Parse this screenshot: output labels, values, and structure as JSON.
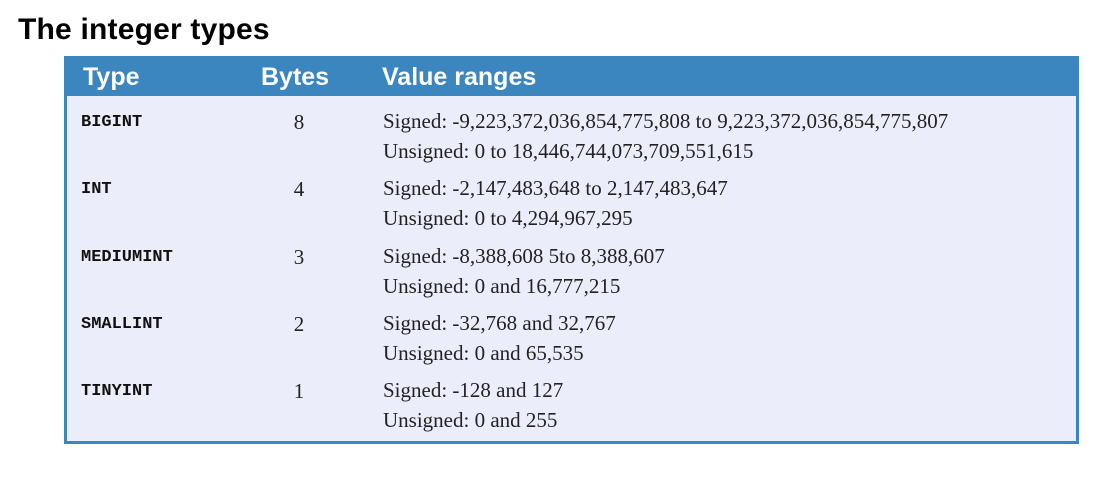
{
  "title": "The integer types",
  "colors": {
    "header_background": "#3c86bf",
    "header_text": "#ffffff",
    "table_background": "#ebeefa",
    "border": "#3c86bf"
  },
  "table": {
    "headers": {
      "type": "Type",
      "bytes": "Bytes",
      "ranges": "Value ranges"
    },
    "rows": [
      {
        "type": "BIGINT",
        "bytes": "8",
        "signed": "Signed: -9,223,372,036,854,775,808 to 9,223,372,036,854,775,807",
        "unsigned": "Unsigned: 0 to 18,446,744,073,709,551,615"
      },
      {
        "type": "INT",
        "bytes": "4",
        "signed": "Signed: -2,147,483,648 to 2,147,483,647",
        "unsigned": "Unsigned: 0 to 4,294,967,295"
      },
      {
        "type": "MEDIUMINT",
        "bytes": "3",
        "signed": "Signed: -8,388,608 5to 8,388,607",
        "unsigned": "Unsigned: 0 and 16,777,215"
      },
      {
        "type": "SMALLINT",
        "bytes": "2",
        "signed": "Signed: -32,768 and 32,767",
        "unsigned": "Unsigned: 0 and 65,535"
      },
      {
        "type": "TINYINT",
        "bytes": "1",
        "signed": "Signed: -128 and 127",
        "unsigned": "Unsigned: 0 and 255"
      }
    ]
  }
}
